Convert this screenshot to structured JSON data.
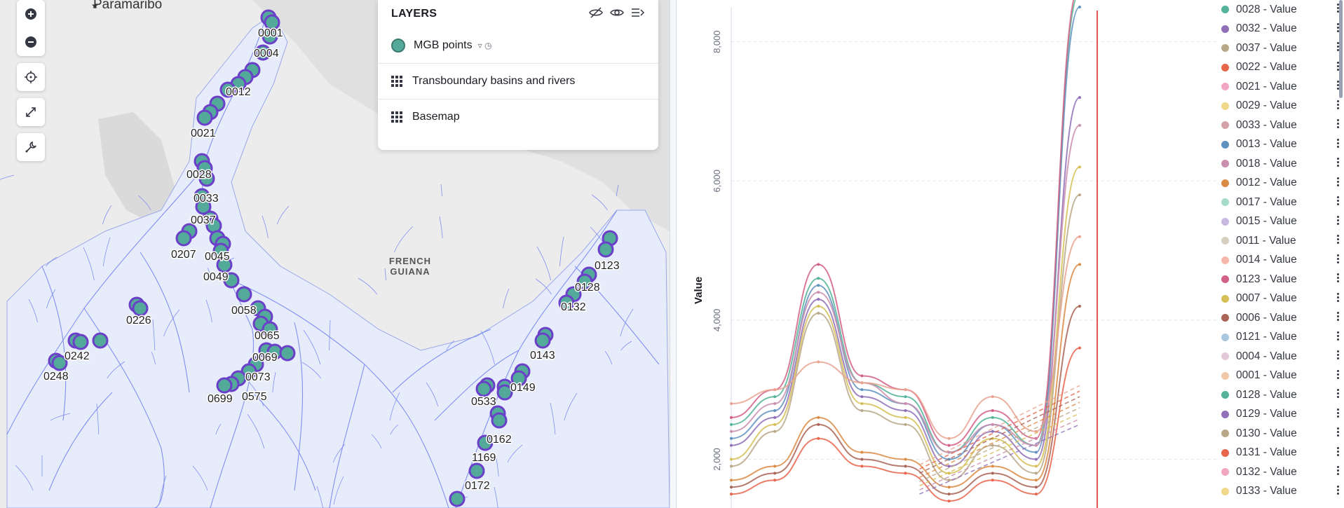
{
  "map": {
    "city_label": "Paramaribo",
    "region_label_line1": "FRENCH",
    "region_label_line2": "GUIANA",
    "controls": [
      "zoom-in",
      "zoom-out",
      "locate",
      "fit-bounds",
      "tools"
    ],
    "point_color": "#53a99a",
    "point_border": "#6b3fc9",
    "station_labels": [
      {
        "id": "0001"
      },
      {
        "id": "0004"
      },
      {
        "id": "0012"
      },
      {
        "id": "0021"
      },
      {
        "id": "0028"
      },
      {
        "id": "0033"
      },
      {
        "id": "0037"
      },
      {
        "id": "0207"
      },
      {
        "id": "0045"
      },
      {
        "id": "0049"
      },
      {
        "id": "0058"
      },
      {
        "id": "0226"
      },
      {
        "id": "0065"
      },
      {
        "id": "0242"
      },
      {
        "id": "0069"
      },
      {
        "id": "0248"
      },
      {
        "id": "0073"
      },
      {
        "id": "0699"
      },
      {
        "id": "0575"
      },
      {
        "id": "0123"
      },
      {
        "id": "0128"
      },
      {
        "id": "0132"
      },
      {
        "id": "0143"
      },
      {
        "id": "0149"
      },
      {
        "id": "0533"
      },
      {
        "id": "0162"
      },
      {
        "id": "1169"
      },
      {
        "id": "0172"
      }
    ]
  },
  "layers": {
    "title": "LAYERS",
    "items": [
      {
        "name": "MGB points",
        "type": "points",
        "meta": "▿ ◷"
      },
      {
        "name": "Transboundary basins and rivers",
        "type": "tile"
      },
      {
        "name": "Basemap",
        "type": "tile"
      }
    ]
  },
  "chart_data": {
    "type": "line",
    "title": "",
    "ylabel": "Value",
    "xlabel": "",
    "y_ticks": [
      "2,000",
      "4,000",
      "6,000",
      "8,000"
    ],
    "ylim": [
      1300,
      8500
    ],
    "grid": true,
    "legend_placement": "right",
    "series": [
      {
        "name": "0028 - Value",
        "color": "#54b399",
        "values": [
          2500,
          2900,
          4600,
          3100,
          2900,
          2100,
          2600,
          2200,
          8700
        ]
      },
      {
        "name": "0032 - Value",
        "color": "#6092c0",
        "values": [
          2300,
          2700,
          4500,
          3000,
          2800,
          2000,
          2500,
          2100,
          8500
        ]
      },
      {
        "name": "0037 - Value",
        "color": "#d36086",
        "values": [
          2600,
          3000,
          4800,
          3200,
          3000,
          2200,
          2700,
          2300,
          8800
        ]
      },
      {
        "name": "0022 - Value",
        "color": "#9170b8",
        "values": [
          2200,
          2600,
          4300,
          2900,
          2700,
          1900,
          2400,
          2000,
          7200
        ]
      },
      {
        "name": "0021 - Value",
        "color": "#ca8eae",
        "values": [
          2400,
          2800,
          4400,
          3100,
          2800,
          2100,
          2500,
          2200,
          6800
        ]
      },
      {
        "name": "0029 - Value",
        "color": "#d6bf57",
        "values": [
          2000,
          2500,
          4200,
          2800,
          2600,
          1800,
          2300,
          1900,
          6200
        ]
      },
      {
        "name": "0033 - Value",
        "color": "#b9a888",
        "values": [
          1900,
          2400,
          4100,
          2700,
          2500,
          1700,
          2200,
          1800,
          5800
        ]
      },
      {
        "name": "0013 - Value",
        "color": "#da8b45",
        "values": [
          1700,
          1900,
          2600,
          2100,
          2000,
          1600,
          1900,
          1700,
          4800
        ]
      },
      {
        "name": "0018 - Value",
        "color": "#aa6556",
        "values": [
          1600,
          1800,
          2500,
          2000,
          1900,
          1500,
          1800,
          1600,
          4200
        ]
      },
      {
        "name": "0012 - Value",
        "color": "#e7664c",
        "values": [
          1500,
          1700,
          2300,
          1900,
          1800,
          1400,
          1700,
          1500,
          3600
        ]
      },
      {
        "name": "0017 - Value",
        "color": "#e9a38f",
        "values": [
          2800,
          3000,
          3400,
          3100,
          3000,
          2300,
          2900,
          2400,
          5200
        ]
      }
    ],
    "legend_entries": [
      {
        "label": "0028 - Value",
        "color": "#54b399"
      },
      {
        "label": "0032 - Value",
        "color": "#9170b8"
      },
      {
        "label": "0037 - Value",
        "color": "#b9a888"
      },
      {
        "label": "0022 - Value",
        "color": "#e7664c"
      },
      {
        "label": "0021 - Value",
        "color": "#f1a7c2"
      },
      {
        "label": "0029 - Value",
        "color": "#f0d78a"
      },
      {
        "label": "0033 - Value",
        "color": "#d4a3a8"
      },
      {
        "label": "0013 - Value",
        "color": "#6092c0"
      },
      {
        "label": "0018 - Value",
        "color": "#ca8eae"
      },
      {
        "label": "0012 - Value",
        "color": "#da8b45"
      },
      {
        "label": "0017 - Value",
        "color": "#a6dbc8"
      },
      {
        "label": "0015 - Value",
        "color": "#c7b8e0"
      },
      {
        "label": "0011 - Value",
        "color": "#d8cfc0"
      },
      {
        "label": "0014 - Value",
        "color": "#f4b7a8"
      },
      {
        "label": "0123 - Value",
        "color": "#d36086"
      },
      {
        "label": "0007 - Value",
        "color": "#d6bf57"
      },
      {
        "label": "0006 - Value",
        "color": "#aa6556"
      },
      {
        "label": "0121 - Value",
        "color": "#a8c8e0"
      },
      {
        "label": "0004 - Value",
        "color": "#e4c8d8"
      },
      {
        "label": "0001 - Value",
        "color": "#f0c8a8"
      },
      {
        "label": "0128 - Value",
        "color": "#54b399"
      },
      {
        "label": "0129 - Value",
        "color": "#9170b8"
      },
      {
        "label": "0130 - Value",
        "color": "#b9a888"
      },
      {
        "label": "0131 - Value",
        "color": "#e7664c"
      },
      {
        "label": "0132 - Value",
        "color": "#f1a7c2"
      },
      {
        "label": "0133 - Value",
        "color": "#f0d78a"
      }
    ],
    "marker_color": "#e55353"
  }
}
